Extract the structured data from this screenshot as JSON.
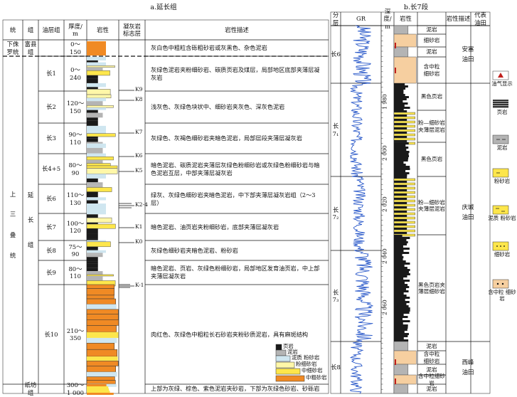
{
  "left": {
    "title": "a.延长组",
    "headers": [
      "统",
      "组",
      "油层组",
      "厚度/\nm",
      "岩性",
      "凝灰岩\n标志层",
      "岩性描述"
    ],
    "series": [
      {
        "name": "下侏\n罗统"
      },
      {
        "name": "上\n三\n叠\n统"
      }
    ],
    "formations": [
      "富县\n组",
      "延\n长\n组",
      "纸坊\n组"
    ],
    "layers": [
      {
        "name": "",
        "thick": "0～\n150",
        "desc": "灰白色中粗粒含砾粗砂岩或灰黑色、杂色泥岩"
      },
      {
        "name": "长1",
        "thick": "0～\n240",
        "desc": "灰绿色泥岩夹粉细砂岩、碳质页岩及煤层，局部地区底部夹薄层凝灰岩"
      },
      {
        "name": "长2",
        "thick": "120～\n150",
        "desc": "浅灰色、灰绿色块状中、细砂岩夹灰色、深灰色泥岩"
      },
      {
        "name": "长3",
        "thick": "90～\n110",
        "desc": "灰绿色、灰褐色细砂岩夹暗色泥岩，局部层段夹薄层凝灰岩"
      },
      {
        "name": "长4+5",
        "thick": "80～\n90",
        "desc": "暗色泥岩、碳质泥岩夹薄层灰绿色粉细砂岩或灰绿色粉细砂岩与暗色泥岩互层，中部夹薄层凝灰岩"
      },
      {
        "name": "长6",
        "thick": "110～\n130",
        "desc": "绿灰、灰绿色细砂岩夹暗色泥岩，中下部夹薄层凝灰岩组（2～3层）"
      },
      {
        "name": "长7",
        "thick": "100～\n120",
        "desc": "暗色泥岩、油页岩夹粉细砂岩，底部夹薄层凝灰岩"
      },
      {
        "name": "长8",
        "thick": "75～\n90",
        "desc": "灰绿色细砂岩夹暗色泥岩、粉砂岩"
      },
      {
        "name": "长9",
        "thick": "80～\n110",
        "desc": "暗色泥岩、页岩、灰绿色粉细砂岩，局部地区发育油页岩，中上部夹薄层凝灰岩"
      },
      {
        "name": "长10",
        "thick": "210～\n350",
        "desc": "肉红色、灰绿色中粗粒长石砂岩夹粉砂质泥岩，具有麻斑结构"
      },
      {
        "name": "",
        "thick": "300～\n1 000",
        "desc": "上部为灰绿、棕色、紫色泥岩夹砂岩，下部为灰绿色砂岩、砂砾岩"
      }
    ],
    "markers": [
      "K9",
      "K8",
      "K7",
      "K6",
      "K5",
      "K2-4",
      "K1",
      "K0",
      "K-1"
    ],
    "legend": [
      "页岩",
      "泥岩",
      "泥质\n粉砂岩",
      "粉细砂岩",
      "中细砂岩",
      "中粗砂岩"
    ]
  },
  "right": {
    "title": "b.长7段",
    "headers": [
      "分\n层",
      "GR",
      "深度/\nm",
      "岩性",
      "岩性描述",
      "代表\n油田"
    ],
    "depth_ticks": [
      "1 980",
      "2 000",
      "2 020",
      "2 040",
      "2 060"
    ],
    "strata": [
      "长6",
      "长7₁",
      "长7₂",
      "长7₃",
      "长8"
    ],
    "rows": [
      "泥岩",
      "细砂岩",
      "泥岩",
      "含中粒\n细砂岩",
      "黑色页岩",
      "粉—细砂岩\n夹薄层泥岩",
      "黑色页岩",
      "粉—细砂岩\n夹薄层泥岩",
      "黑色页岩夹\n薄层细砂岩",
      "泥岩",
      "含中粒\n细砂岩",
      "泥岩",
      "含中粒细砂岩",
      "泥岩"
    ],
    "oilfields": [
      "安塞\n油田",
      "庆城\n油田",
      "西峰\n油田"
    ]
  },
  "legend": [
    "油气显示",
    "页岩",
    "泥岩",
    "粉砂岩",
    "泥质\n粉砂岩",
    "细砂岩",
    "含中粒\n细砂岩"
  ],
  "colors": {
    "coarse": "#f08a24",
    "mid": "#fde64b",
    "fine": "#fff7a8",
    "silt": "#cfe6f0",
    "mud": "#b4b4b4",
    "shale": "#1a1a1a",
    "tan": "#f6cfa0",
    "blue": "#2958c9",
    "oil": "#c0201d"
  }
}
